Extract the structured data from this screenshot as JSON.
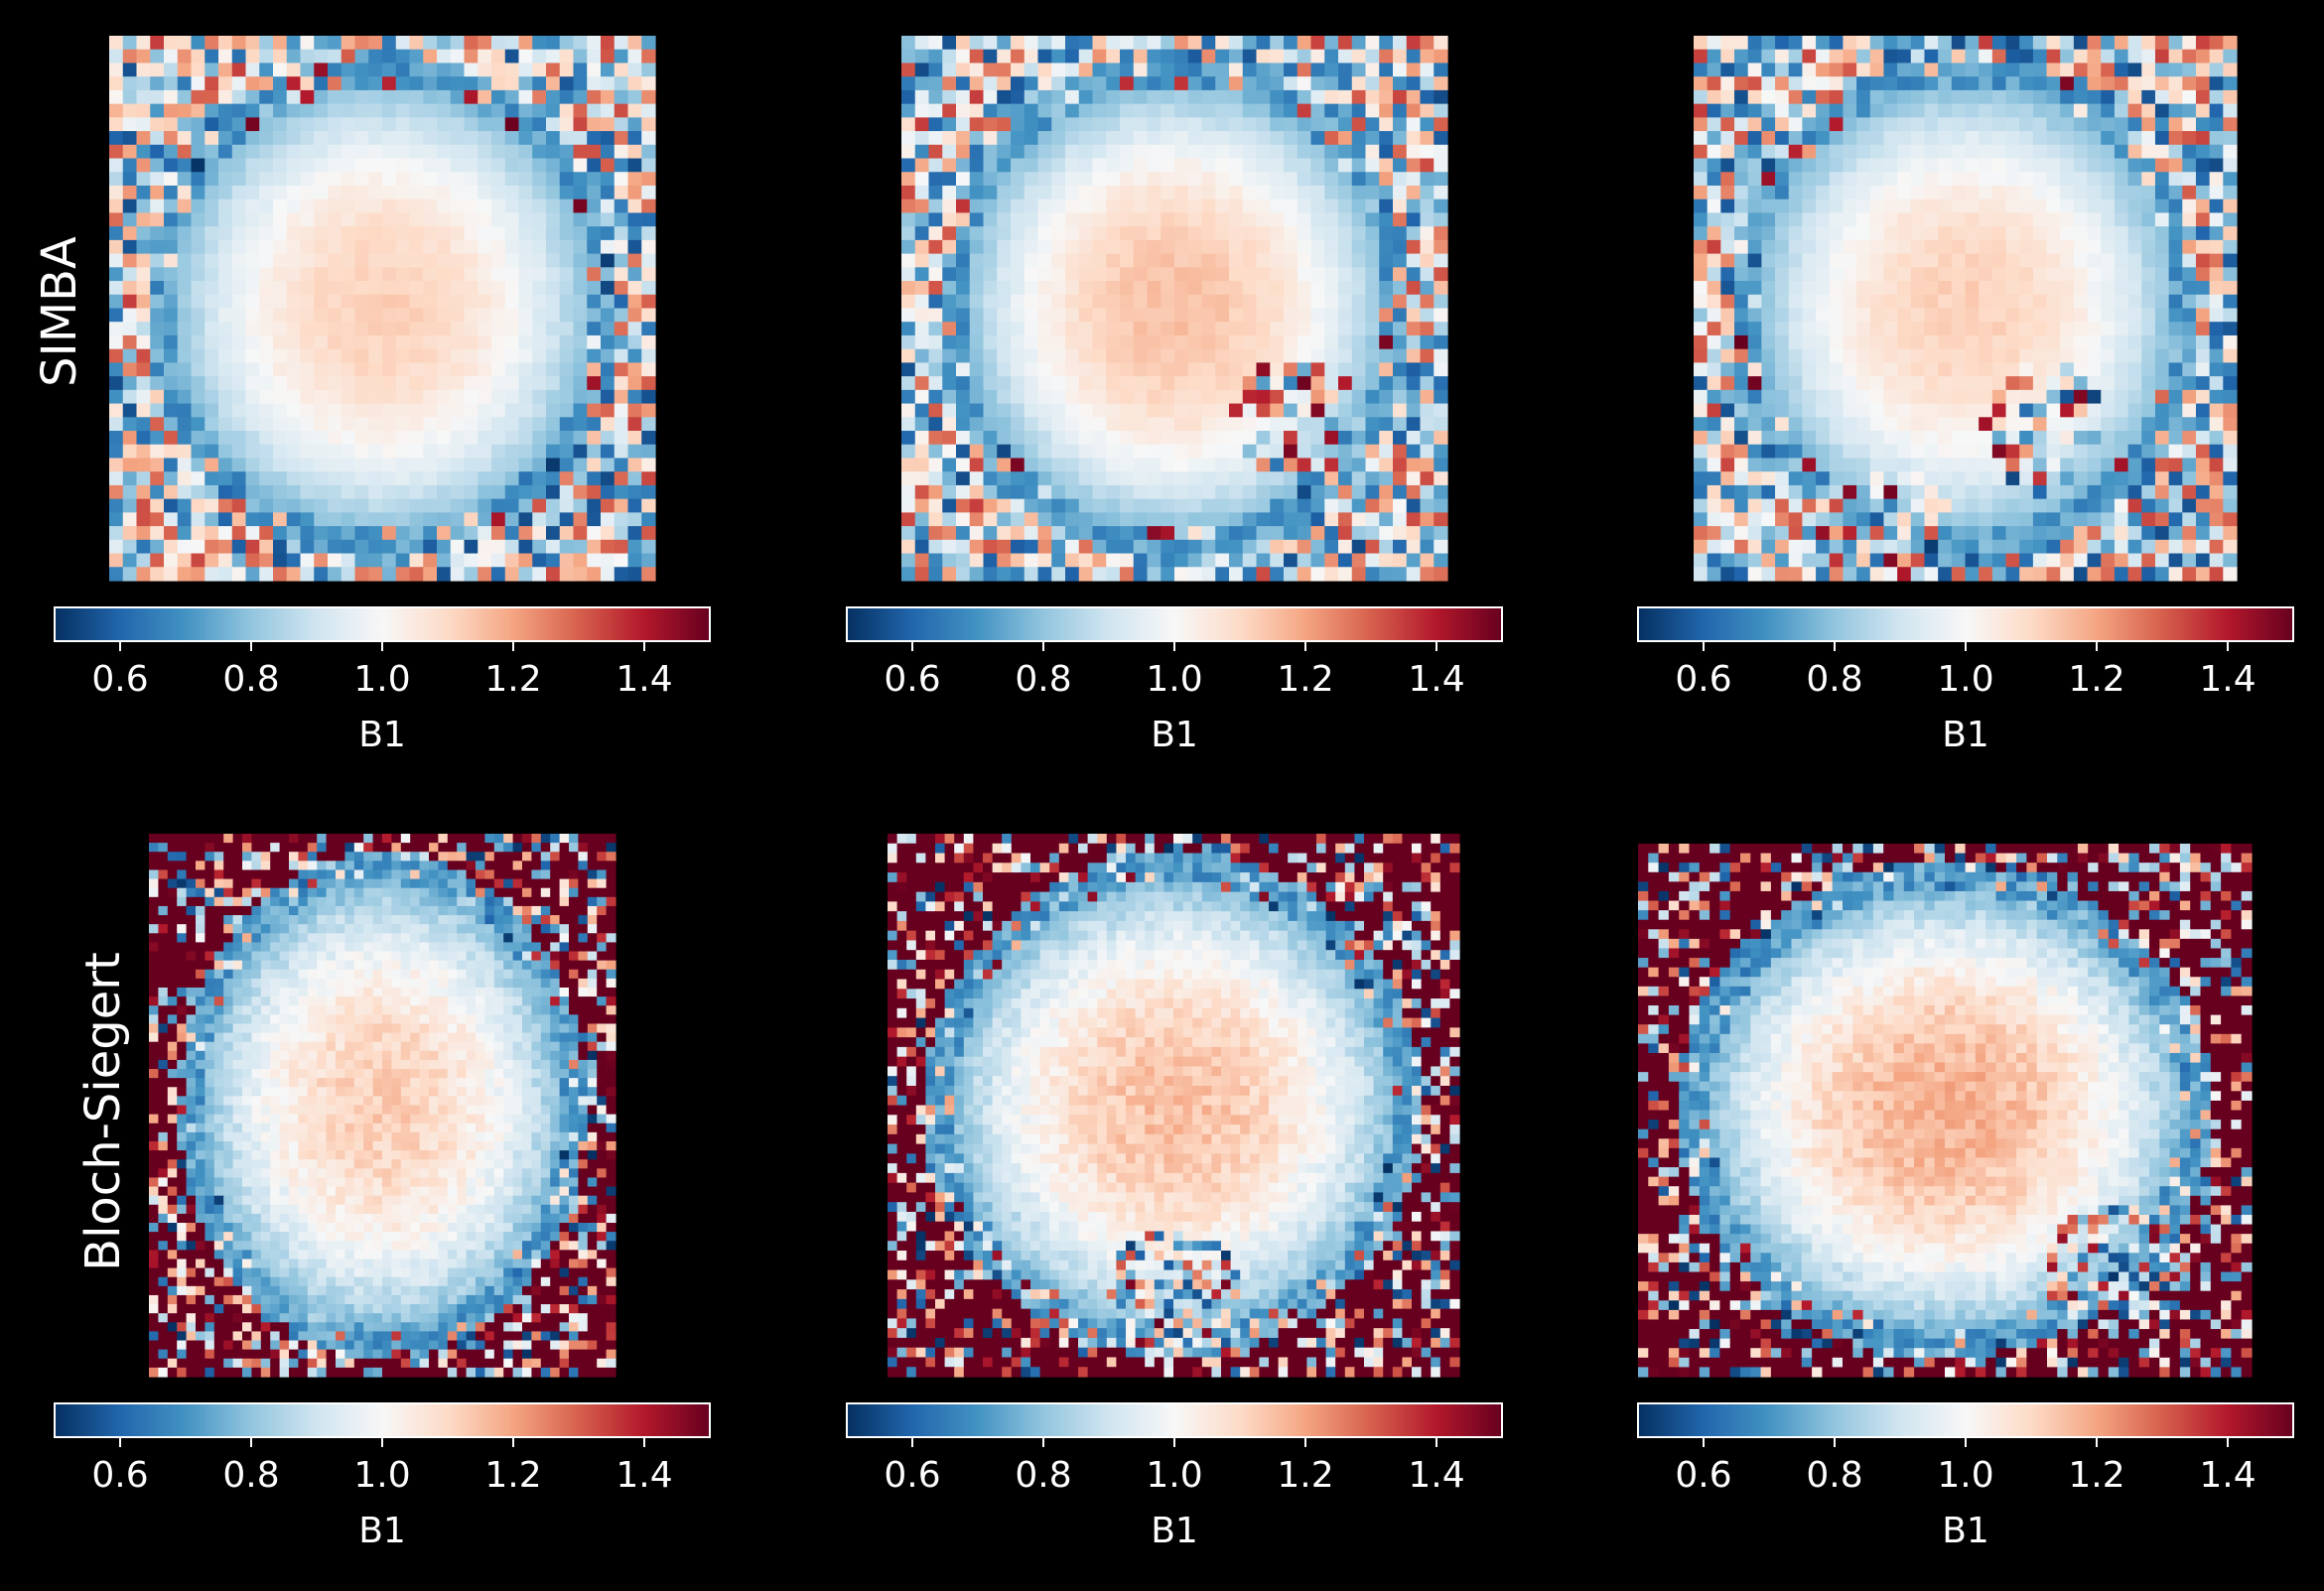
{
  "rows": [
    "SIMBA",
    "Bloch-Siegert"
  ],
  "colormap": {
    "name": "RdBu_r",
    "stops": [
      "#053061",
      "#2166ac",
      "#4393c3",
      "#92c5de",
      "#d1e5f0",
      "#f7f7f7",
      "#fddbc7",
      "#f4a582",
      "#d6604d",
      "#b2182b",
      "#67001f"
    ]
  },
  "colorbar": {
    "label": "B1",
    "vmin": 0.5,
    "vmax": 1.5,
    "ticks": [
      0.6,
      0.8,
      1.0,
      1.2,
      1.4
    ],
    "tick_labels": [
      "0.6",
      "0.8",
      "1.0",
      "1.2",
      "1.4"
    ]
  },
  "background_color": "#000000",
  "chart_data": [
    {
      "type": "heatmap",
      "row": "SIMBA",
      "column": 1,
      "grid": [
        40,
        40
      ],
      "value_range": [
        0.5,
        1.5
      ],
      "center_value": 1.12,
      "colorbar_label": "B1",
      "hot_spots": []
    },
    {
      "type": "heatmap",
      "row": "SIMBA",
      "column": 2,
      "grid": [
        40,
        40
      ],
      "value_range": [
        0.5,
        1.5
      ],
      "center_value": 1.15,
      "colorbar_label": "B1",
      "hot_spots": [
        [
          0.72,
          0.7
        ]
      ]
    },
    {
      "type": "heatmap",
      "row": "SIMBA",
      "column": 3,
      "grid": [
        40,
        40
      ],
      "value_range": [
        0.5,
        1.5
      ],
      "center_value": 1.12,
      "colorbar_label": "B1",
      "hot_spots": [
        [
          0.65,
          0.72
        ],
        [
          0.35,
          0.9
        ]
      ]
    },
    {
      "type": "heatmap",
      "row": "Bloch-Siegert",
      "column": 1,
      "grid": [
        50,
        60
      ],
      "value_range": [
        0.5,
        1.5
      ],
      "center_value": 1.12,
      "colorbar_label": "B1",
      "hot_spots": []
    },
    {
      "type": "heatmap",
      "row": "Bloch-Siegert",
      "column": 2,
      "grid": [
        60,
        56
      ],
      "value_range": [
        0.5,
        1.5
      ],
      "center_value": 1.15,
      "colorbar_label": "B1",
      "hot_spots": [
        [
          0.5,
          0.85
        ]
      ]
    },
    {
      "type": "heatmap",
      "row": "Bloch-Siegert",
      "column": 3,
      "grid": [
        60,
        56
      ],
      "value_range": [
        0.5,
        1.5
      ],
      "center_value": 1.18,
      "colorbar_label": "B1",
      "hot_spots": [
        [
          0.78,
          0.8
        ]
      ]
    }
  ]
}
